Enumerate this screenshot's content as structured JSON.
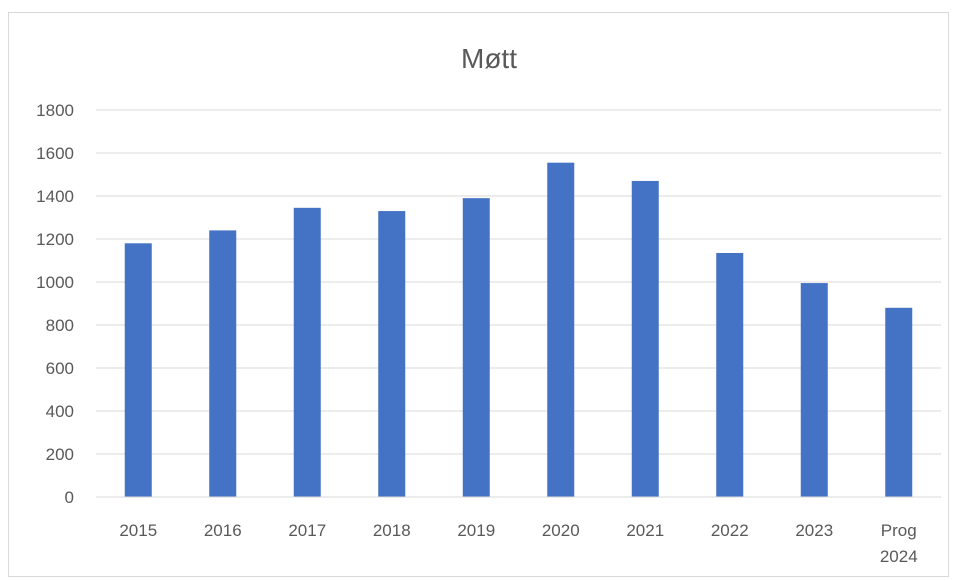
{
  "chart_data": {
    "type": "bar",
    "title": "Møtt",
    "xlabel": "",
    "ylabel": "",
    "categories": [
      "2015",
      "2016",
      "2017",
      "2018",
      "2019",
      "2020",
      "2021",
      "2022",
      "2023",
      "Prog 2024"
    ],
    "values": [
      1180,
      1240,
      1345,
      1330,
      1390,
      1555,
      1470,
      1135,
      995,
      880
    ],
    "ylim": [
      0,
      1800
    ],
    "yticks": [
      "0",
      "200",
      "400",
      "600",
      "800",
      "1000",
      "1200",
      "1400",
      "1600",
      "1800"
    ],
    "grid": true,
    "legend": "none",
    "bar_color": "#4472c4"
  }
}
